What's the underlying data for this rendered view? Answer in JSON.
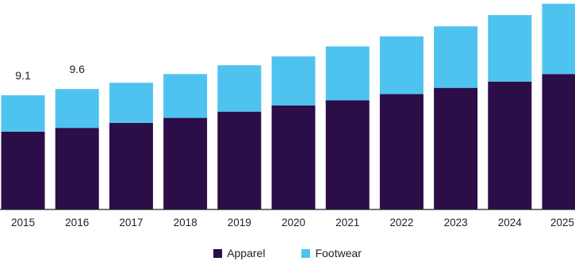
{
  "chart_data": {
    "type": "bar",
    "stacked": true,
    "categories": [
      "2015",
      "2016",
      "2017",
      "2018",
      "2019",
      "2020",
      "2021",
      "2022",
      "2023",
      "2024",
      "2025"
    ],
    "series": [
      {
        "name": "Apparel",
        "color": "#2b0e47",
        "values": [
          6.2,
          6.5,
          6.9,
          7.3,
          7.8,
          8.3,
          8.7,
          9.2,
          9.7,
          10.2,
          10.8
        ]
      },
      {
        "name": "Footwear",
        "color": "#4fc3ef",
        "values": [
          2.9,
          3.1,
          3.2,
          3.5,
          3.7,
          3.9,
          4.3,
          4.6,
          4.9,
          5.3,
          5.6
        ]
      }
    ],
    "data_labels": {
      "2015": "9.1",
      "2016": "9.6"
    },
    "ylim": [
      0,
      16.7
    ],
    "grid": false,
    "legend_position": "bottom"
  }
}
